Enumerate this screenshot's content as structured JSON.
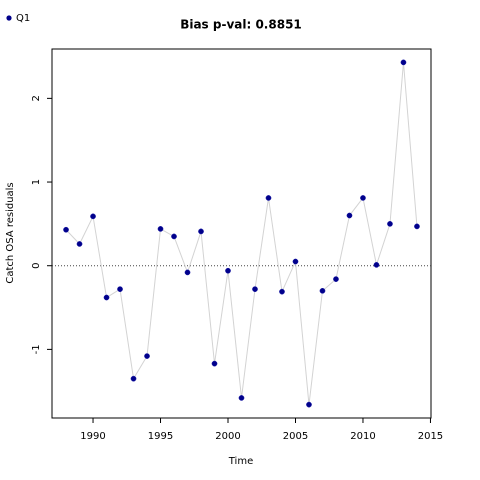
{
  "chart_data": {
    "type": "line",
    "title": "Bias p-val: 0.8851",
    "title_color": "#228b22",
    "x_label": "Time",
    "y_label": "Catch OSA residuals",
    "x": [
      1988,
      1989,
      1990,
      1991,
      1992,
      1993,
      1994,
      1995,
      1996,
      1997,
      1998,
      1999,
      2000,
      2001,
      2002,
      2003,
      2004,
      2005,
      2006,
      2007,
      2008,
      2009,
      2010,
      2011,
      2012,
      2013,
      2014
    ],
    "series": [
      {
        "name": "Q1",
        "color": "#00008b",
        "line_color": "#d3d3d3",
        "values": [
          0.43,
          0.26,
          0.59,
          -0.38,
          -0.28,
          -1.35,
          -1.08,
          0.44,
          0.35,
          -0.08,
          0.41,
          -1.17,
          -0.06,
          -1.58,
          -0.28,
          0.81,
          -0.31,
          0.05,
          -1.66,
          -0.3,
          -0.16,
          0.6,
          0.81,
          0.01,
          0.5,
          2.43,
          0.47
        ]
      }
    ],
    "xlim": [
      1986.96,
      2015.04
    ],
    "xticks": [
      1990,
      1995,
      2000,
      2005,
      2010,
      2015
    ],
    "ylim": [
      -1.82,
      2.59
    ],
    "yticks": [
      -1,
      0,
      1,
      2
    ],
    "hline": 0,
    "legend": "top-left"
  }
}
